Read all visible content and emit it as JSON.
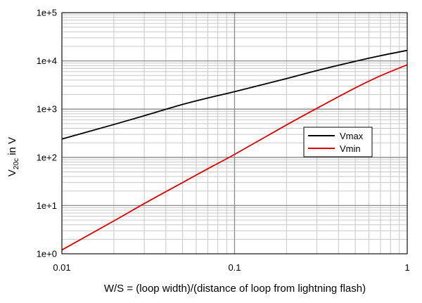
{
  "chart_data": {
    "type": "line",
    "title": "",
    "xlabel": "W/S = (loop width)/(distance of loop from lightning flash)",
    "ylabel": {
      "main": "V",
      "subscript": "20c",
      "suffix": " in V"
    },
    "x_scale": "log",
    "y_scale": "log",
    "xlim": [
      0.01,
      1
    ],
    "ylim": [
      1,
      100000
    ],
    "x_ticks": [
      {
        "value": 0.01,
        "label": "0.01"
      },
      {
        "value": 0.1,
        "label": "0.1"
      },
      {
        "value": 1,
        "label": "1"
      }
    ],
    "y_ticks": [
      {
        "value": 1,
        "label": "1e+0"
      },
      {
        "value": 10,
        "label": "1e+1"
      },
      {
        "value": 100,
        "label": "1e+2"
      },
      {
        "value": 1000,
        "label": "1e+3"
      },
      {
        "value": 10000,
        "label": "1e+4"
      },
      {
        "value": 100000,
        "label": "1e+5"
      }
    ],
    "grid": true,
    "legend_position": "center-right",
    "series": [
      {
        "name": "Vmax",
        "color": "#000000",
        "x": [
          0.01,
          0.02,
          0.03,
          0.05,
          0.07,
          0.1,
          0.2,
          0.3,
          0.5,
          0.7,
          1
        ],
        "y": [
          240,
          480,
          730,
          1250,
          1700,
          2300,
          4300,
          6300,
          9800,
          12800,
          16500
        ]
      },
      {
        "name": "Vmin",
        "color": "#e00000",
        "x": [
          0.01,
          0.02,
          0.03,
          0.05,
          0.07,
          0.1,
          0.2,
          0.3,
          0.5,
          0.7,
          1
        ],
        "y": [
          1.2,
          4.8,
          11,
          30,
          58,
          115,
          470,
          1040,
          2750,
          4900,
          8300
        ]
      }
    ]
  }
}
